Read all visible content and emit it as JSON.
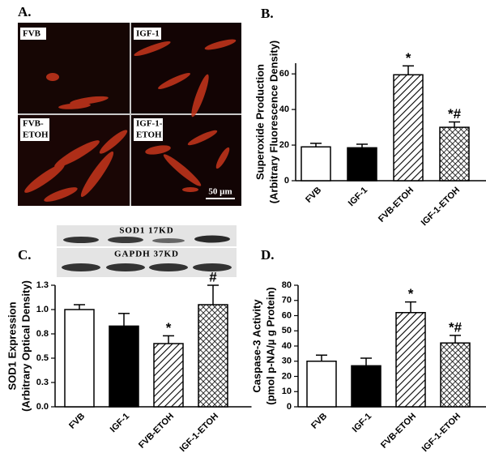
{
  "panel_a": {
    "letter": "A.",
    "images": [
      [
        "FVB"
      ],
      [
        "IGF-1"
      ],
      [
        "FVB-",
        "ETOH"
      ],
      [
        "IGF-1-",
        "ETOH"
      ]
    ],
    "scale_bar": "50 µm"
  },
  "blot": {
    "bands": [
      "SOD1  17KD",
      "GAPDH 37KD"
    ]
  },
  "chart_data": [
    {
      "type": "bar",
      "panel": "B.",
      "ylabel": [
        "Superoxide Production",
        "(Arbitrary Fluorescence Density)"
      ],
      "categories": [
        "FVB",
        "IGF-1",
        "FVB-ETOH",
        "IGF-1-ETOH"
      ],
      "values": [
        19,
        18.5,
        59.5,
        30
      ],
      "errors": [
        2,
        2,
        5,
        3
      ],
      "fills": [
        "white",
        "black",
        "hatch",
        "crosshatch"
      ],
      "annotations": [
        null,
        null,
        "*",
        "*#"
      ],
      "ylim": [
        0,
        66
      ],
      "yticks": [
        0,
        20,
        40,
        60
      ]
    },
    {
      "type": "bar",
      "panel": "C.",
      "ylabel": [
        "SOD1 Expression",
        "(Arbitrary Optical Density)"
      ],
      "categories": [
        "FVB",
        "IGF-1",
        "FVB-ETOH",
        "IGF-1-ETOH"
      ],
      "values": [
        1.0,
        0.83,
        0.65,
        1.05
      ],
      "errors": [
        0.05,
        0.13,
        0.08,
        0.2
      ],
      "fills": [
        "white",
        "black",
        "hatch",
        "crosshatch"
      ],
      "annotations": [
        null,
        null,
        "*",
        "#"
      ],
      "ylim": [
        0,
        1.25
      ],
      "yticks": [
        {
          "value": 0,
          "label": "0.0"
        },
        {
          "value": 0.25,
          "label": "0.3"
        },
        0.5,
        {
          "value": 0.75,
          "label": "0.8"
        },
        {
          "value": 1,
          "label": "1.0"
        },
        {
          "value": 1.25,
          "label": "1.3"
        }
      ]
    },
    {
      "type": "bar",
      "panel": "D.",
      "ylabel": [
        "Caspase-3 Activity",
        "(pmol p-NA/µ g Protein)"
      ],
      "categories": [
        "FVB",
        "IGF-1",
        "FVB-ETOH",
        "IGF-1-ETOH"
      ],
      "values": [
        30,
        27,
        62,
        42
      ],
      "errors": [
        4,
        5,
        7,
        5
      ],
      "fills": [
        "white",
        "black",
        "hatch",
        "crosshatch"
      ],
      "annotations": [
        null,
        null,
        "*",
        "*#"
      ],
      "ylim": [
        0,
        80
      ],
      "yticks": [
        0,
        10,
        20,
        30,
        40,
        50,
        60,
        70,
        80
      ]
    }
  ]
}
